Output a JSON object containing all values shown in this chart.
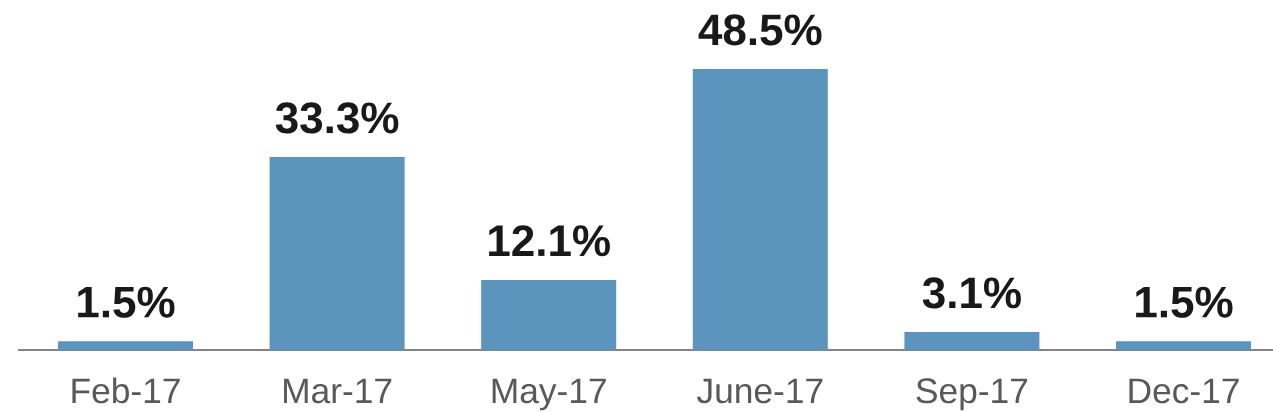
{
  "chart_data": {
    "type": "bar",
    "categories": [
      "Feb-17",
      "Mar-17",
      "May-17",
      "June-17",
      "Sep-17",
      "Dec-17"
    ],
    "values": [
      1.5,
      33.3,
      12.1,
      48.5,
      3.1,
      1.5
    ],
    "color": "#5b94bc",
    "value_labels": [
      "1.5%",
      "33.3%",
      "12.1%",
      "48.5%",
      "3.1%",
      "1.5%"
    ]
  }
}
